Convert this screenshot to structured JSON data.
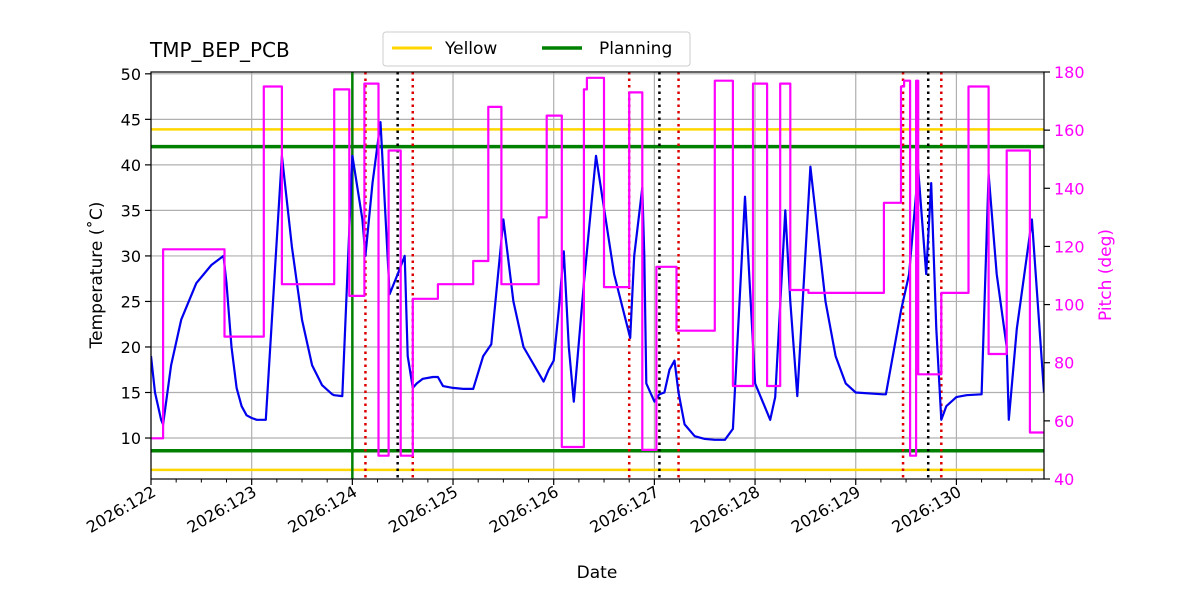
{
  "chart_data": {
    "type": "line",
    "title": "TMP_BEP_PCB",
    "xlabel": "Date",
    "ylabel": "Temperature ($^\\circ$C)",
    "ylabel_display": "Temperature (˚C)",
    "y2label": "Pitch (deg)",
    "xlim": [
      122.0,
      130.87
    ],
    "ylim": [
      5.5,
      50.2
    ],
    "y2lim": [
      40,
      180
    ],
    "grid": true,
    "legend_position": "top-center",
    "x_ticks": [
      {
        "value": 122,
        "label": "2026:122"
      },
      {
        "value": 123,
        "label": "2026:123"
      },
      {
        "value": 124,
        "label": "2026:124"
      },
      {
        "value": 125,
        "label": "2026:125"
      },
      {
        "value": 126,
        "label": "2026:126"
      },
      {
        "value": 127,
        "label": "2026:127"
      },
      {
        "value": 128,
        "label": "2026:128"
      },
      {
        "value": 129,
        "label": "2026:129"
      },
      {
        "value": 130,
        "label": "2026:130"
      }
    ],
    "y_ticks": [
      10,
      15,
      20,
      25,
      30,
      35,
      40,
      45,
      50
    ],
    "y2_ticks": [
      40,
      60,
      80,
      100,
      120,
      140,
      160,
      180
    ],
    "limits": [
      {
        "name": "Yellow",
        "values": [
          6.5,
          43.9
        ],
        "color": "#FFD700"
      },
      {
        "name": "Planning",
        "values": [
          8.6,
          42.0
        ],
        "color": "#008000"
      }
    ],
    "now_line": {
      "x": 124.0,
      "color": "#008000"
    },
    "red_dotted_x": [
      124.13,
      124.6,
      126.75,
      127.24,
      129.47,
      129.85
    ],
    "black_dotted_x": [
      124.45,
      127.05,
      129.72
    ],
    "series": [
      {
        "name": "TMP_BEP_PCB",
        "color": "#0000EE",
        "axis": "left",
        "x": [
          122.0,
          122.04,
          122.08,
          122.1,
          122.12,
          122.2,
          122.3,
          122.45,
          122.6,
          122.72,
          122.75,
          122.8,
          122.85,
          122.9,
          122.95,
          123.0,
          123.05,
          123.14,
          123.3,
          123.4,
          123.5,
          123.6,
          123.7,
          123.8,
          123.82,
          123.9,
          124.0,
          124.1,
          124.13,
          124.2,
          124.28,
          124.37,
          124.45,
          124.52,
          124.55,
          124.6,
          124.64,
          124.7,
          124.8,
          124.85,
          124.9,
          125.0,
          125.1,
          125.2,
          125.3,
          125.38,
          125.5,
          125.6,
          125.7,
          125.9,
          125.95,
          126.0,
          126.05,
          126.1,
          126.15,
          126.2,
          126.3,
          126.42,
          126.6,
          126.76,
          126.8,
          126.88,
          126.9,
          126.92,
          127.0,
          127.05,
          127.1,
          127.15,
          127.2,
          127.24,
          127.3,
          127.4,
          127.5,
          127.6,
          127.7,
          127.78,
          127.9,
          128.0,
          128.15,
          128.2,
          128.3,
          128.35,
          128.42,
          128.55,
          128.7,
          128.8,
          128.9,
          129.0,
          129.27,
          129.3,
          129.45,
          129.53,
          129.62,
          129.7,
          129.75,
          129.8,
          129.85,
          129.9,
          130.0,
          130.1,
          130.25,
          130.32,
          130.4,
          130.5,
          130.52,
          130.6,
          130.75,
          130.87
        ],
        "y": [
          19.0,
          15.0,
          13.0,
          12.0,
          11.5,
          18.0,
          23.0,
          27.0,
          29.0,
          30.0,
          27.0,
          20.0,
          15.5,
          13.5,
          12.5,
          12.2,
          12.0,
          12.0,
          41.0,
          31.0,
          23.0,
          18.0,
          15.8,
          14.8,
          14.7,
          14.6,
          41.0,
          34.0,
          30.0,
          38.0,
          44.7,
          25.8,
          28.0,
          30.0,
          19.0,
          15.5,
          16.0,
          16.5,
          16.7,
          16.7,
          15.7,
          15.5,
          15.4,
          15.4,
          19.0,
          20.3,
          34.0,
          25.0,
          20.0,
          16.2,
          17.5,
          18.5,
          24.0,
          30.5,
          20.0,
          14.0,
          27.0,
          41.0,
          28.0,
          21.0,
          30.0,
          37.5,
          30.0,
          16.0,
          14.0,
          14.8,
          15.0,
          17.5,
          18.5,
          15.0,
          11.5,
          10.2,
          9.9,
          9.8,
          9.8,
          11.0,
          36.5,
          16.0,
          12.0,
          14.5,
          35.0,
          25.0,
          14.6,
          39.8,
          25.0,
          19.0,
          16.0,
          15.0,
          14.8,
          14.8,
          24.0,
          28.0,
          39.5,
          28.0,
          38.0,
          22.0,
          12.0,
          13.5,
          14.5,
          14.7,
          14.8,
          39.0,
          28.0,
          20.0,
          12.0,
          22.0,
          34.0,
          15.0
        ]
      },
      {
        "name": "Pitch",
        "color": "#FF00FF",
        "axis": "right",
        "x": [
          122.0,
          122.12,
          122.12,
          122.73,
          122.73,
          123.12,
          123.12,
          123.3,
          123.3,
          123.82,
          123.82,
          123.97,
          123.97,
          124.12,
          124.12,
          124.26,
          124.26,
          124.36,
          124.36,
          124.38,
          124.38,
          124.48,
          124.48,
          124.6,
          124.6,
          124.85,
          124.85,
          125.2,
          125.2,
          125.35,
          125.35,
          125.48,
          125.48,
          125.85,
          125.85,
          125.93,
          125.93,
          126.08,
          126.08,
          126.3,
          126.3,
          126.33,
          126.33,
          126.5,
          126.5,
          126.75,
          126.75,
          126.88,
          126.88,
          127.02,
          127.02,
          127.22,
          127.22,
          127.6,
          127.6,
          127.78,
          127.78,
          127.98,
          127.98,
          128.12,
          128.12,
          128.25,
          128.25,
          128.35,
          128.35,
          128.53,
          128.53,
          129.28,
          129.28,
          129.45,
          129.45,
          129.48,
          129.48,
          129.54,
          129.54,
          129.6,
          129.6,
          129.62,
          129.62,
          129.67,
          129.67,
          129.85,
          129.85,
          130.12,
          130.12,
          130.32,
          130.32,
          130.5,
          130.5,
          130.73,
          130.73,
          130.87
        ],
        "y": [
          54,
          54,
          119,
          119,
          89,
          89,
          175,
          175,
          107,
          107,
          174,
          174,
          103,
          103,
          176,
          176,
          48,
          48,
          153,
          153,
          153,
          153,
          48,
          48,
          102,
          102,
          107,
          107,
          115,
          115,
          168,
          168,
          107,
          107,
          130,
          130,
          165,
          165,
          51,
          51,
          174,
          174,
          178,
          178,
          106,
          106,
          173,
          173,
          50,
          50,
          113,
          113,
          91,
          91,
          177,
          177,
          72,
          72,
          176,
          176,
          72,
          72,
          176,
          176,
          105,
          105,
          104,
          104,
          135,
          135,
          175,
          175,
          177,
          177,
          48,
          48,
          177,
          177,
          76,
          76,
          76,
          76,
          104,
          104,
          175,
          175,
          83,
          83,
          153,
          153,
          56,
          56
        ]
      }
    ]
  }
}
